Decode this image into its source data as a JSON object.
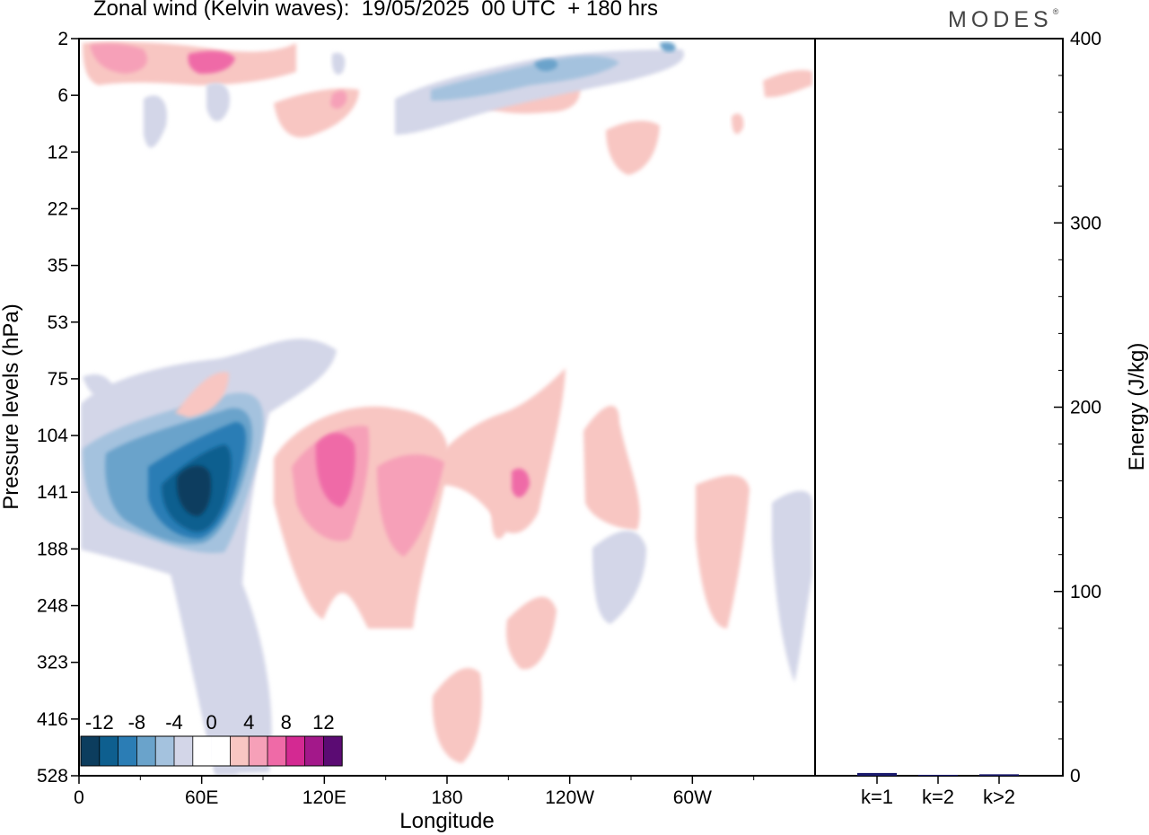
{
  "title": "Zonal wind (Kelvin waves):  19/05/2025  00 UTC  + 180 hrs",
  "brand": "MODES",
  "brand_mark": "®",
  "colors": {
    "levels": [
      "#0c3d5e",
      "#0e5f8f",
      "#2b7db5",
      "#6aa3cb",
      "#a4c2de",
      "#d3d6e8",
      "#ffffff",
      "#ffffff",
      "#f8c6c2",
      "#f6a0b8",
      "#ef6aa7",
      "#d42992",
      "#a3188a",
      "#5b0b73"
    ],
    "energy_bar": "#1b1b6e"
  },
  "chart_data": [
    {
      "type": "heatmap",
      "title": "Zonal wind (Kelvin waves):  19/05/2025  00 UTC  + 180 hrs",
      "xlabel": "Longitude",
      "ylabel": "Pressure levels (hPa)",
      "x_ticks": [
        "0",
        "60E",
        "120E",
        "180",
        "120W",
        "60W"
      ],
      "x_range_deg_east": [
        0,
        360
      ],
      "y_ticks": [
        "2",
        "6",
        "12",
        "22",
        "35",
        "53",
        "75",
        "104",
        "141",
        "188",
        "248",
        "323",
        "416",
        "528"
      ],
      "y_axis": "pressure levels (hPa), top 2 to bottom 528",
      "colorbar": {
        "ticks": [
          "-12",
          "-8",
          "-4",
          "0",
          "4",
          "8",
          "12"
        ],
        "placement": "bottom-left inside plot"
      },
      "features": [
        {
          "sign": "negative",
          "min_value": -14,
          "lon": 50,
          "p": 141
        },
        {
          "sign": "positive",
          "max_value": 8,
          "lon": 125,
          "p": 120
        },
        {
          "sign": "positive",
          "max_value": 4,
          "lon": 160,
          "p": 150
        },
        {
          "sign": "positive",
          "max_value": 4,
          "lon": 210,
          "p": 150
        },
        {
          "sign": "negative",
          "min_value": -4,
          "lon": 275,
          "p": 248
        },
        {
          "sign": "positive",
          "max_value": 8,
          "lon": 65,
          "p": 4
        },
        {
          "sign": "negative",
          "min_value": -8,
          "lon": 232,
          "p": 4
        }
      ]
    },
    {
      "type": "bar",
      "categories": [
        "k=1",
        "k=2",
        "k>2"
      ],
      "values": [
        1.5,
        0.5,
        0.8
      ],
      "ylabel": "Energy (J/kg)",
      "ylim": [
        0,
        400
      ],
      "y_ticks": [
        "0",
        "100",
        "200",
        "300",
        "400"
      ]
    }
  ]
}
